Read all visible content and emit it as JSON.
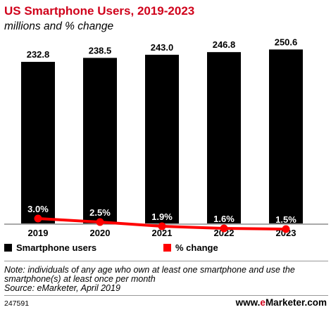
{
  "title": "US Smartphone Users, 2019-2023",
  "subtitle": "millions and % change",
  "colors": {
    "title": "#d0021b",
    "bars": "#000000",
    "line": "#ff0000",
    "text": "#000000"
  },
  "chart_data": {
    "type": "bar",
    "categories": [
      "2019",
      "2020",
      "2021",
      "2022",
      "2023"
    ],
    "series": [
      {
        "name": "Smartphone users",
        "type": "bar",
        "values": [
          232.8,
          238.5,
          243.0,
          246.8,
          250.6
        ],
        "labels": [
          "232.8",
          "238.5",
          "243.0",
          "246.8",
          "250.6"
        ]
      },
      {
        "name": "% change",
        "type": "line",
        "values": [
          3.0,
          2.5,
          1.9,
          1.6,
          1.5
        ],
        "labels": [
          "3.0%",
          "2.5%",
          "1.9%",
          "1.6%",
          "1.5%"
        ]
      }
    ],
    "grid": false,
    "legend_position": "bottom"
  },
  "legend": [
    {
      "label": "Smartphone users",
      "color": "#000000"
    },
    {
      "label": "% change",
      "color": "#ff0000"
    }
  ],
  "note": "Note: individuals of any age who own at least one smartphone and use the smartphone(s) at least once per month",
  "source": "Source: eMarketer, April 2019",
  "footer_id": "247591",
  "brand": {
    "prefix": "www.",
    "e": "e",
    "name": "Marketer",
    "suffix": ".com"
  }
}
